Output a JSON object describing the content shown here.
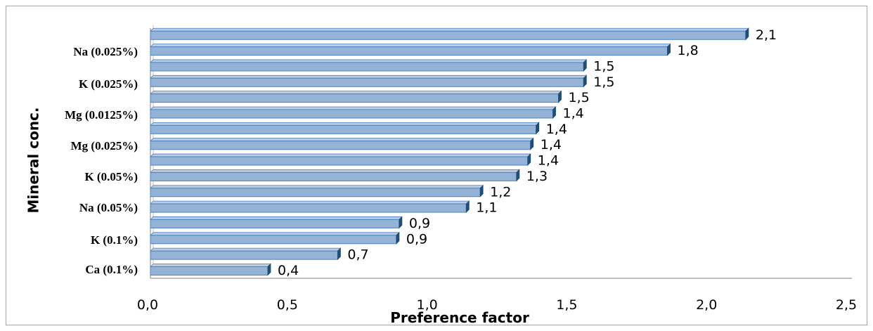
{
  "chart_data": {
    "type": "bar",
    "orientation": "horizontal",
    "xlabel": "Preference factor",
    "ylabel": "Mineral conc.",
    "xlim": [
      0,
      2.5
    ],
    "x_ticks": [
      "0,0",
      "0,5",
      "1,0",
      "1,5",
      "2,0",
      "2,5"
    ],
    "y_tick_labels": [
      "Ca (0.1%)",
      "K (0.1%)",
      "Na (0.05%)",
      "K (0.05%)",
      "Mg (0.025%)",
      "Mg (0.0125%)",
      "K (0.025%)",
      "Na (0.025%)"
    ],
    "values": [
      0.42,
      0.67,
      0.88,
      0.89,
      1.13,
      1.18,
      1.31,
      1.35,
      1.36,
      1.38,
      1.44,
      1.46,
      1.55,
      1.55,
      1.85,
      2.13
    ],
    "data_labels": [
      "0,4",
      "0,7",
      "0,9",
      "0,9",
      "1,1",
      "1,2",
      "1,3",
      "1,4",
      "1,4",
      "1,4",
      "1,4",
      "1,5",
      "1,5",
      "1,5",
      "1,8",
      "2,1"
    ],
    "bar_color": "#95b3d7",
    "bar_edge_color": "#4f81bd",
    "grid": false,
    "legend": "none"
  }
}
